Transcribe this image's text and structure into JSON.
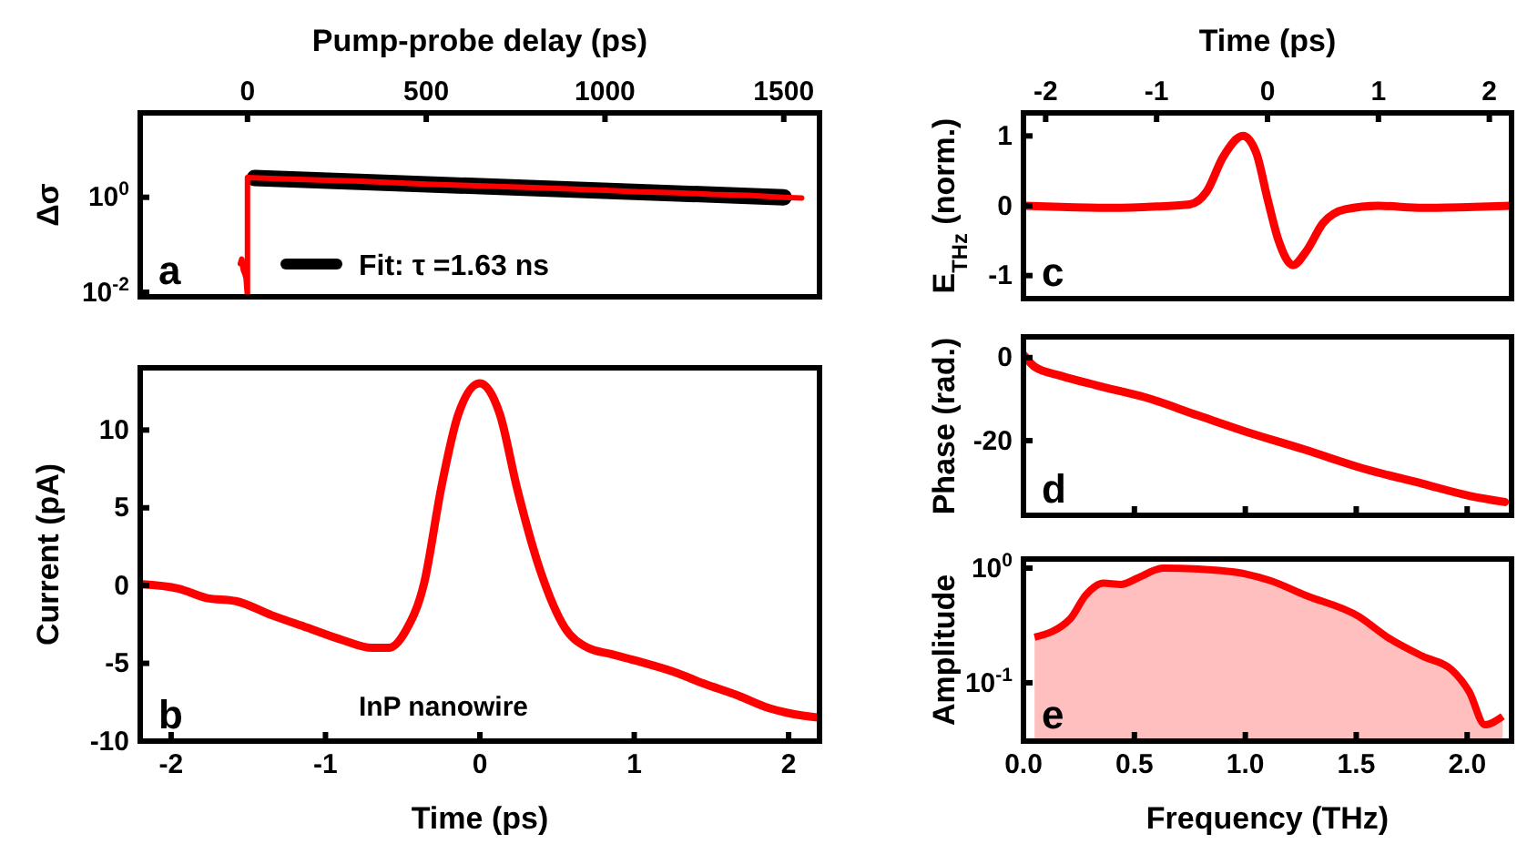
{
  "chart_data": [
    {
      "type": "line",
      "xlabel": "Pump-probe delay (ps)",
      "ylabel": "Δσ",
      "xlim": [
        -300,
        1600
      ],
      "xticks": [
        0,
        500,
        1000,
        1500
      ],
      "ylim": [
        0.008,
        60
      ],
      "yticks": [
        {
          "value": 1,
          "label": "10$^{0}$"
        },
        {
          "value": 0.01,
          "label": "10$^{-2}$"
        }
      ],
      "log": "y",
      "legend": "bottom",
      "annotations": [
        "a"
      ],
      "series": [
        {
          "color": "#ff0000",
          "x": [
            -20,
            -16,
            -12,
            -8,
            -4,
            0,
            0,
            100,
            200,
            300,
            400,
            500,
            600,
            700,
            800,
            900,
            1000,
            1100,
            1200,
            1300,
            1400,
            1500,
            1550
          ],
          "values": [
            0.04,
            0.05,
            0.03,
            0.025,
            0.02,
            0.008,
            2.6,
            2.45,
            2.3,
            2.2,
            2.05,
            1.9,
            1.8,
            1.7,
            1.6,
            1.5,
            1.4,
            1.3,
            1.25,
            1.15,
            1.1,
            1.0,
            0.97
          ]
        },
        {
          "name": "Fit: τ =1.63 ns",
          "color": "#000000",
          "x": [
            20,
            1500
          ],
          "values": [
            2.55,
            1.0
          ]
        }
      ]
    },
    {
      "type": "line",
      "xlabel": "Time (ps)",
      "ylabel": "Current (pA)",
      "xlim": [
        -2.2,
        2.2
      ],
      "xticks": [
        -2,
        -1,
        0,
        1,
        2
      ],
      "ylim": [
        -10,
        14
      ],
      "yticks": [
        -10,
        -5,
        0,
        5,
        10
      ],
      "annotations": [
        "b",
        "InP nanowire"
      ],
      "series": [
        {
          "color": "#ff0000",
          "x": [
            -2.2,
            -1.95,
            -1.77,
            -1.58,
            -1.35,
            -1.12,
            -0.89,
            -0.7,
            -0.59,
            -0.48,
            -0.36,
            -0.25,
            -0.14,
            0,
            0.13,
            0.24,
            0.39,
            0.55,
            0.7,
            0.85,
            1.0,
            1.27,
            1.45,
            1.68,
            1.85,
            2.0,
            2.2
          ],
          "values": [
            0.1,
            -0.2,
            -0.8,
            -1.0,
            -1.9,
            -2.7,
            -3.5,
            -4.0,
            -4.0,
            -2.9,
            0.2,
            6.3,
            11,
            13,
            11,
            6.3,
            1.0,
            -2.7,
            -4.0,
            -4.4,
            -4.8,
            -5.6,
            -6.3,
            -7.1,
            -7.8,
            -8.2,
            -8.5
          ]
        }
      ]
    },
    {
      "type": "line",
      "xlabel": "Time (ps)",
      "ylabel": "E$_{THz}$ (norm.)",
      "xlim": [
        -2.2,
        2.2
      ],
      "xticks": [
        -2,
        -1,
        0,
        1,
        2
      ],
      "ylim": [
        -1.33,
        1.33
      ],
      "yticks": [
        -1,
        0,
        1
      ],
      "annotations": [
        "c"
      ],
      "series": [
        {
          "color": "#ff0000",
          "x": [
            -2.2,
            -1.8,
            -1.4,
            -1.0,
            -0.7,
            -0.55,
            -0.4,
            -0.22,
            -0.1,
            0.0,
            0.1,
            0.23,
            0.35,
            0.5,
            0.7,
            1.0,
            1.4,
            1.8,
            2.2
          ],
          "values": [
            0,
            -0.02,
            -0.03,
            -0.01,
            0.02,
            0.2,
            0.7,
            1.0,
            0.75,
            0.1,
            -0.5,
            -0.85,
            -0.65,
            -0.25,
            -0.05,
            0.0,
            -0.03,
            -0.02,
            0
          ]
        }
      ]
    },
    {
      "type": "line",
      "ylabel": "Phase (rad.)",
      "xlim": [
        0,
        2.2
      ],
      "xticks": [
        0,
        0.5,
        1,
        1.5,
        2
      ],
      "ylim": [
        -38,
        5
      ],
      "yticks": [
        -20,
        0
      ],
      "tick_labels": "y",
      "annotations": [
        "d"
      ],
      "series": [
        {
          "color": "#ff0000",
          "x": [
            0,
            0.05,
            0.17,
            0.33,
            0.55,
            0.79,
            1.0,
            1.27,
            1.53,
            1.8,
            2.01,
            2.17
          ],
          "values": [
            0.7,
            -2.2,
            -4.4,
            -6.7,
            -9.6,
            -14,
            -17.8,
            -22.2,
            -26.7,
            -30.4,
            -33.3,
            -34.8
          ]
        }
      ]
    },
    {
      "type": "area",
      "xlabel": "Frequency (THz)",
      "ylabel": "Amplitude",
      "xlim": [
        0,
        2.2
      ],
      "xticks": [
        {
          "value": 0,
          "label": "0.0"
        },
        {
          "value": 0.5,
          "label": "0.5"
        },
        {
          "value": 1,
          "label": "1.0"
        },
        {
          "value": 1.5,
          "label": "1.5"
        },
        {
          "value": 2,
          "label": "2.0"
        }
      ],
      "ylim": [
        0.031,
        1.2
      ],
      "yticks": [
        {
          "value": 1,
          "label": "10$^{0}$"
        },
        {
          "value": 0.1,
          "label": "10$^{-1}$"
        }
      ],
      "log": "y",
      "annotations": [
        "e"
      ],
      "series": [
        {
          "color": "#ff0000",
          "x": [
            0.05,
            0.21,
            0.28,
            0.36,
            0.44,
            0.52,
            0.63,
            0.79,
            1.0,
            1.11,
            1.27,
            1.51,
            1.64,
            1.8,
            1.93,
            2.01,
            2.08,
            2.16
          ],
          "values": [
            0.25,
            0.36,
            0.58,
            0.74,
            0.72,
            0.83,
            1.0,
            0.98,
            0.89,
            0.78,
            0.58,
            0.38,
            0.25,
            0.17,
            0.13,
            0.083,
            0.043,
            0.051
          ]
        }
      ]
    }
  ]
}
